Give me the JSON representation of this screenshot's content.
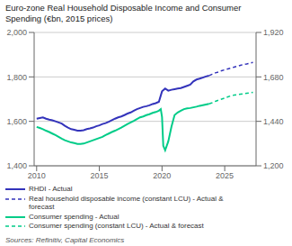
{
  "chart_data": {
    "type": "line",
    "title": "Euro-zone Real Household Disposable Income and Consumer\nSpending (€bn, 2015 prices)",
    "annotations": [
      "Sources: Refinitiv, Capital Economics"
    ],
    "xlim": [
      2009.8,
      2027.5
    ],
    "xticks": [
      2010,
      2015,
      2020,
      2025
    ],
    "ylim": [
      1400,
      2000
    ],
    "yticks": [
      {
        "value": 1400,
        "label": "1,400"
      },
      {
        "value": 1600,
        "label": "1,600"
      },
      {
        "value": 1800,
        "label": "1,800"
      },
      {
        "value": 2000,
        "label": "2,000"
      }
    ],
    "y2lim": [
      1200,
      1920
    ],
    "y2ticks": [
      {
        "value": 1200,
        "label": "1,200"
      },
      {
        "value": 1440,
        "label": "1,440"
      },
      {
        "value": 1680,
        "label": "1,680"
      },
      {
        "value": 1920,
        "label": "1,920"
      }
    ],
    "grid": true,
    "legend": "bottom",
    "series": [
      {
        "name": "RHDI - Actual",
        "color": "#3333bb",
        "line_style": "solid",
        "x": [
          2010.0,
          2010.25,
          2010.5,
          2010.75,
          2011.0,
          2011.25,
          2011.5,
          2011.75,
          2012.0,
          2012.25,
          2012.5,
          2012.75,
          2013.0,
          2013.25,
          2013.5,
          2013.75,
          2014.0,
          2014.25,
          2014.5,
          2014.75,
          2015.0,
          2015.25,
          2015.5,
          2015.75,
          2016.0,
          2016.25,
          2016.5,
          2016.75,
          2017.0,
          2017.25,
          2017.5,
          2017.75,
          2018.0,
          2018.25,
          2018.5,
          2018.75,
          2019.0,
          2019.25,
          2019.5,
          2019.75,
          2020.0,
          2020.25,
          2020.5,
          2020.75,
          2021.0,
          2021.25,
          2021.5,
          2021.75,
          2022.0,
          2022.25,
          2022.5,
          2022.75,
          2023.0,
          2023.25,
          2023.5,
          2023.75
        ],
        "values": [
          1612,
          1615,
          1618,
          1612,
          1608,
          1605,
          1600,
          1595,
          1590,
          1580,
          1572,
          1565,
          1562,
          1558,
          1558,
          1560,
          1565,
          1568,
          1572,
          1578,
          1582,
          1588,
          1592,
          1598,
          1605,
          1612,
          1618,
          1622,
          1628,
          1635,
          1640,
          1648,
          1655,
          1660,
          1665,
          1668,
          1672,
          1678,
          1682,
          1688,
          1735,
          1748,
          1738,
          1742,
          1745,
          1748,
          1750,
          1755,
          1760,
          1765,
          1780,
          1788,
          1792,
          1797,
          1802,
          1806
        ]
      },
      {
        "name": "Real household disposable income (constant LCU) - Actual &\nforecast",
        "color": "#3333bb",
        "line_style": "dashed",
        "x": [
          2023.75,
          2024.0,
          2024.25,
          2024.5,
          2024.75,
          2025.0,
          2025.25,
          2025.5,
          2025.75,
          2026.0,
          2026.25,
          2026.5,
          2026.75,
          2027.0,
          2027.25
        ],
        "values": [
          1806,
          1812,
          1818,
          1822,
          1828,
          1832,
          1836,
          1840,
          1844,
          1848,
          1852,
          1856,
          1858,
          1862,
          1865
        ]
      },
      {
        "name": "Consumer spending - Actual",
        "color": "#00cc88",
        "line_style": "solid",
        "x": [
          2010.0,
          2010.25,
          2010.5,
          2010.75,
          2011.0,
          2011.25,
          2011.5,
          2011.75,
          2012.0,
          2012.25,
          2012.5,
          2012.75,
          2013.0,
          2013.25,
          2013.5,
          2013.75,
          2014.0,
          2014.25,
          2014.5,
          2014.75,
          2015.0,
          2015.25,
          2015.5,
          2015.75,
          2016.0,
          2016.25,
          2016.5,
          2016.75,
          2017.0,
          2017.25,
          2017.5,
          2017.75,
          2018.0,
          2018.25,
          2018.5,
          2018.75,
          2019.0,
          2019.25,
          2019.5,
          2019.75,
          2019.9,
          2020.0,
          2020.1,
          2020.25,
          2020.5,
          2020.75,
          2021.0,
          2021.25,
          2021.5,
          2021.75,
          2022.0,
          2022.25,
          2022.5,
          2022.75,
          2023.0,
          2023.25,
          2023.5,
          2023.75
        ],
        "values": [
          1575,
          1570,
          1565,
          1558,
          1552,
          1545,
          1538,
          1530,
          1522,
          1515,
          1510,
          1505,
          1502,
          1498,
          1498,
          1500,
          1505,
          1510,
          1515,
          1520,
          1525,
          1530,
          1538,
          1545,
          1552,
          1558,
          1565,
          1572,
          1580,
          1588,
          1595,
          1602,
          1610,
          1618,
          1622,
          1628,
          1632,
          1638,
          1642,
          1648,
          1655,
          1620,
          1490,
          1470,
          1510,
          1575,
          1628,
          1640,
          1648,
          1655,
          1658,
          1660,
          1663,
          1666,
          1670,
          1673,
          1676,
          1679
        ]
      },
      {
        "name": "Consumer spending (constant LCU) - Actual & forecast",
        "color": "#00cc88",
        "line_style": "dashed",
        "x": [
          2023.75,
          2024.0,
          2024.25,
          2024.5,
          2024.75,
          2025.0,
          2025.25,
          2025.5,
          2025.75,
          2026.0,
          2026.25,
          2026.5,
          2026.75,
          2027.0,
          2027.25
        ],
        "values": [
          1679,
          1684,
          1690,
          1695,
          1700,
          1705,
          1710,
          1715,
          1718,
          1720,
          1722,
          1724,
          1726,
          1728,
          1730
        ]
      }
    ]
  }
}
